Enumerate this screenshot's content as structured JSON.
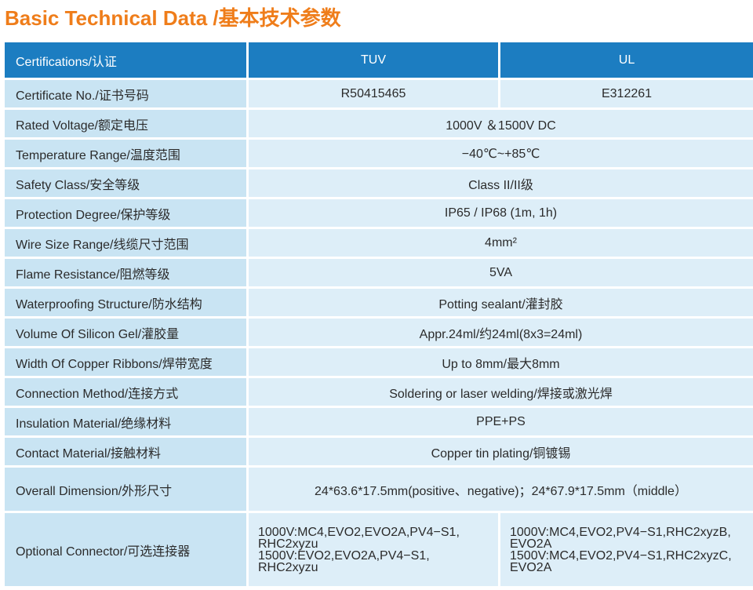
{
  "title": "Basic Technical Data /基本技术参数",
  "header": {
    "label": "Certifications/认证",
    "col1": "TUV",
    "col2": "UL"
  },
  "rows": [
    {
      "label": "Certificate No./证书号码",
      "tuv": "R50415465",
      "ul": "E312261"
    },
    {
      "label": "Rated Voltage/额定电压",
      "value": "1000V ＆1500V DC"
    },
    {
      "label": "Temperature Range/温度范围",
      "value": "−40℃~+85℃"
    },
    {
      "label": "Safety Class/安全等级",
      "value": "Class II/II级"
    },
    {
      "label": "Protection Degree/保护等级",
      "value": "IP65 / IP68 (1m, 1h)"
    },
    {
      "label": "Wire Size Range/线缆尺寸范围",
      "value": "4mm²"
    },
    {
      "label": "Flame Resistance/阻燃等级",
      "value": "5VA"
    },
    {
      "label": "Waterproofing Structure/防水结构",
      "value": "Potting sealant/灌封胶"
    },
    {
      "label": "Volume Of Silicon Gel/灌胶量",
      "value": "Appr.24ml/约24ml(8x3=24ml)"
    },
    {
      "label": "Width Of Copper Ribbons/焊带宽度",
      "value": "Up to 8mm/最大8mm"
    },
    {
      "label": "Connection Method/连接方式",
      "value": "Soldering or laser welding/焊接或激光焊"
    },
    {
      "label": "Insulation Material/绝缘材料",
      "value": "PPE+PS"
    },
    {
      "label": "Contact Material/接触材料",
      "value": "Copper tin plating/铜镀锡"
    },
    {
      "label": "Overall Dimension/外形尺寸",
      "value": "24*63.6*17.5mm(positive、negative)；24*67.9*17.5mm（middle）"
    }
  ],
  "optional": {
    "label": "Optional Connector/可选连接器",
    "tuv": [
      "1000V:MC4,EVO2,EVO2A,PV4−S1,",
      "RHC2xyzu",
      "1500V:EVO2,EVO2A,PV4−S1,",
      "RHC2xyzu"
    ],
    "ul": [
      "1000V:MC4,EVO2,PV4−S1,RHC2xyzB,",
      "EVO2A",
      "1500V:MC4,EVO2,PV4−S1,RHC2xyzC,",
      "EVO2A"
    ]
  }
}
